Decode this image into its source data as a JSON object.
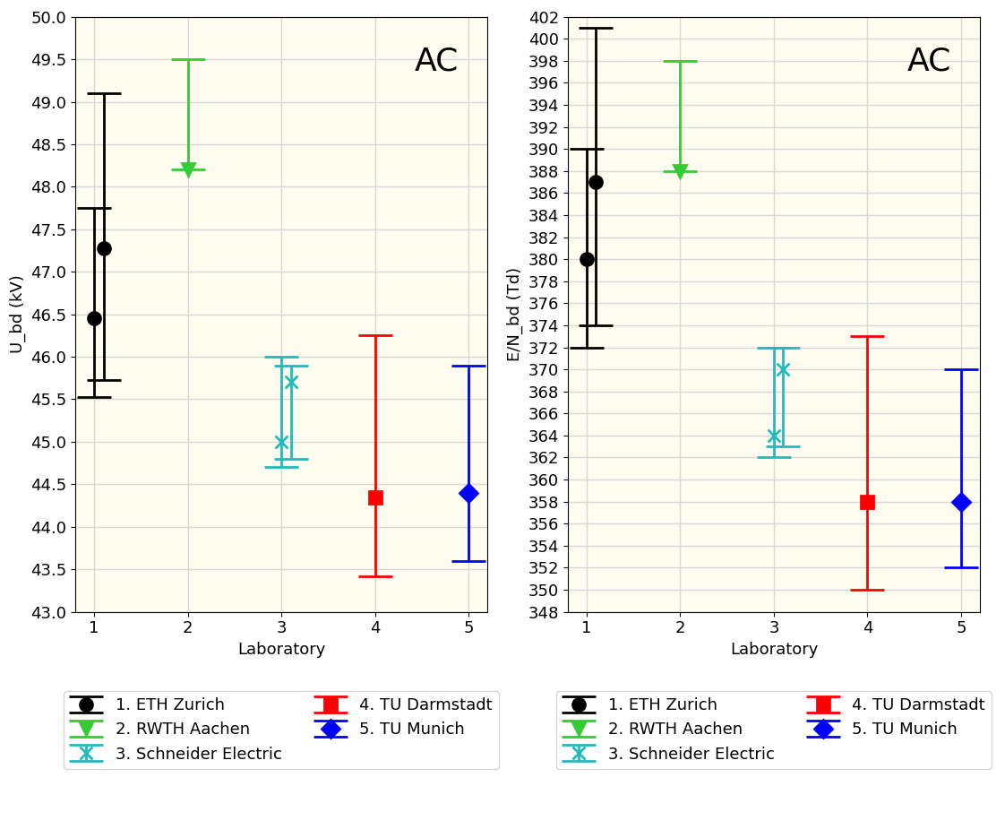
{
  "chart_data": [
    {
      "type": "errorbar",
      "ylabel": "U_bd (kV)",
      "xlabel": "Laboratory",
      "annotation": "AC",
      "xlim": [
        0.8,
        5.2
      ],
      "xticks": [
        1,
        2,
        3,
        4,
        5
      ],
      "ylim": [
        43.0,
        50.0
      ],
      "yticks": [
        43.0,
        43.5,
        44.0,
        44.5,
        45.0,
        45.5,
        46.0,
        46.5,
        47.0,
        47.5,
        48.0,
        48.5,
        49.0,
        49.5,
        50.0
      ],
      "grid": true,
      "legend": "upper center",
      "series": [
        {
          "name": "1. ETH Zurich",
          "color": "#000000",
          "marker": "circle",
          "x": [
            1,
            1.1
          ],
          "values": [
            46.45,
            47.28
          ],
          "lower": [
            45.53,
            45.73
          ],
          "upper": [
            47.75,
            49.1
          ]
        },
        {
          "name": "2. RWTH Aachen",
          "color": "#33cc33",
          "marker": "triangle_down",
          "x": [
            2
          ],
          "values": [
            48.2
          ],
          "lower": [
            48.2
          ],
          "upper": [
            49.5
          ]
        },
        {
          "name": "3. Schneider Electric",
          "color": "#22bbbb",
          "marker": "x",
          "x": [
            3,
            3.1
          ],
          "values": [
            45.0,
            45.7
          ],
          "lower": [
            44.7,
            44.8
          ],
          "upper": [
            46.0,
            45.9
          ]
        },
        {
          "name": "4. TU Darmstadt",
          "color": "#ff0000",
          "marker": "square",
          "x": [
            4
          ],
          "values": [
            44.35
          ],
          "lower": [
            43.42
          ],
          "upper": [
            46.25
          ]
        },
        {
          "name": "5. TU Munich",
          "color": "#0000ff",
          "marker": "diamond",
          "x": [
            5
          ],
          "values": [
            44.4
          ],
          "lower": [
            43.6
          ],
          "upper": [
            45.9
          ]
        }
      ]
    },
    {
      "type": "errorbar",
      "ylabel": "E/N_bd (Td)",
      "xlabel": "Laboratory",
      "annotation": "AC",
      "xlim": [
        0.8,
        5.2
      ],
      "xticks": [
        1,
        2,
        3,
        4,
        5
      ],
      "ylim": [
        348,
        402
      ],
      "yticks": [
        348,
        350,
        352,
        354,
        356,
        358,
        360,
        362,
        364,
        366,
        368,
        370,
        372,
        374,
        376,
        378,
        380,
        382,
        384,
        386,
        388,
        390,
        392,
        394,
        396,
        398,
        400,
        402
      ],
      "grid": true,
      "legend": "upper center",
      "series": [
        {
          "name": "1. ETH Zurich",
          "color": "#000000",
          "marker": "circle",
          "x": [
            1,
            1.1
          ],
          "values": [
            380,
            387
          ],
          "lower": [
            372,
            374
          ],
          "upper": [
            390,
            401
          ]
        },
        {
          "name": "2. RWTH Aachen",
          "color": "#33cc33",
          "marker": "triangle_down",
          "x": [
            2
          ],
          "values": [
            388
          ],
          "lower": [
            388
          ],
          "upper": [
            398
          ]
        },
        {
          "name": "3. Schneider Electric",
          "color": "#22bbbb",
          "marker": "x",
          "x": [
            3,
            3.1
          ],
          "values": [
            364,
            370
          ],
          "lower": [
            362,
            363
          ],
          "upper": [
            372,
            372
          ]
        },
        {
          "name": "4. TU Darmstadt",
          "color": "#ff0000",
          "marker": "square",
          "x": [
            4
          ],
          "values": [
            358
          ],
          "lower": [
            350
          ],
          "upper": [
            373
          ]
        },
        {
          "name": "5. TU Munich",
          "color": "#0000ff",
          "marker": "diamond",
          "x": [
            5
          ],
          "values": [
            358
          ],
          "lower": [
            352
          ],
          "upper": [
            370
          ]
        }
      ]
    }
  ]
}
